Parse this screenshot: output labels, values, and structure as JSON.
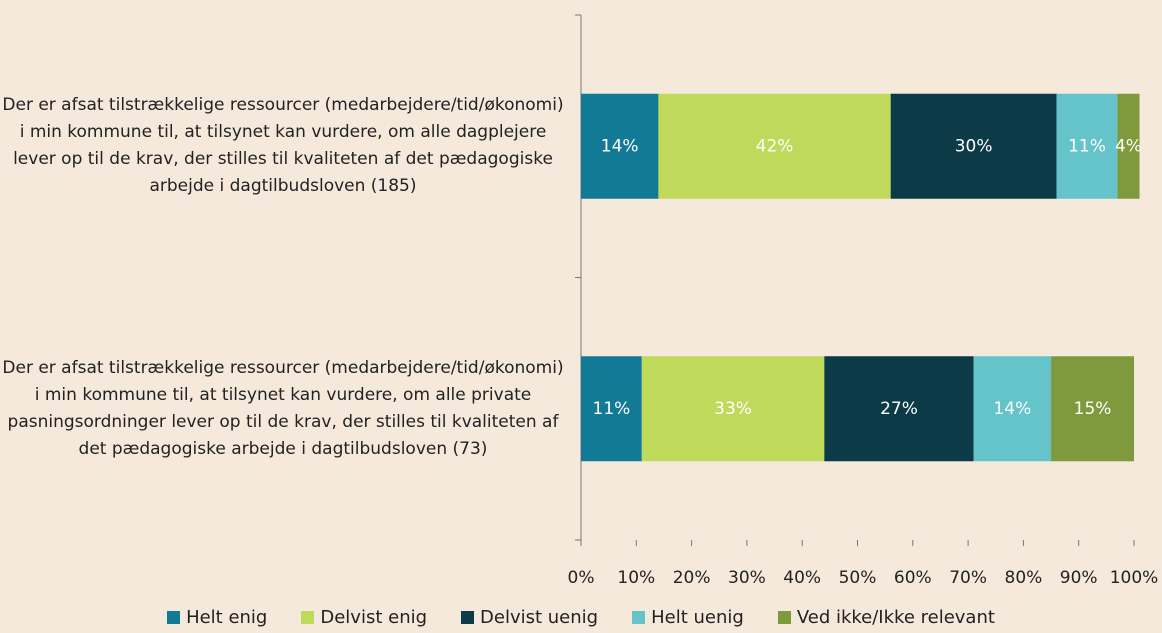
{
  "chart_data": {
    "type": "stacked_barh",
    "categories": [
      "Der er afsat tilstrækkelige ressourcer (medarbejdere/tid/økonomi) i min kommune til, at tilsynet kan vurdere, om alle dagplejere lever op til de krav, der stilles til kvaliteten af det pædagogiske arbejde i dagtilbudsloven (185)",
      "Der er afsat tilstrækkelige ressourcer (medarbejdere/tid/økonomi) i min kommune til, at tilsynet kan vurdere, om alle private pasningsordninger lever op til de krav, der stilles til kvaliteten af det pædagogiske arbejde i dagtilbudsloven (73)"
    ],
    "series": [
      {
        "name": "Helt enig",
        "color": "#137a96",
        "values": [
          14,
          11
        ],
        "value_labels": [
          "14%",
          "11%"
        ]
      },
      {
        "name": "Delvist enig",
        "color": "#bfd95a",
        "values": [
          42,
          33
        ],
        "value_labels": [
          "42%",
          "33%"
        ]
      },
      {
        "name": "Delvist uenig",
        "color": "#0c3a47",
        "values": [
          30,
          27
        ],
        "value_labels": [
          "30%",
          "27%"
        ]
      },
      {
        "name": "Helt uenig",
        "color": "#64c4c9",
        "values": [
          11,
          14
        ],
        "value_labels": [
          "11%",
          "14%"
        ]
      },
      {
        "name": "Ved ikke/Ikke relevant",
        "color": "#7f9a3c",
        "values": [
          4,
          15
        ],
        "value_labels": [
          "4%",
          "15%"
        ]
      }
    ],
    "xlim": [
      0,
      100
    ],
    "xticks": [
      {
        "value": 0,
        "label": "0%"
      },
      {
        "value": 10,
        "label": "10%"
      },
      {
        "value": 20,
        "label": "20%"
      },
      {
        "value": 30,
        "label": "30%"
      },
      {
        "value": 40,
        "label": "40%"
      },
      {
        "value": 50,
        "label": "50%"
      },
      {
        "value": 60,
        "label": "60%"
      },
      {
        "value": 70,
        "label": "70%"
      },
      {
        "value": 80,
        "label": "80%"
      },
      {
        "value": 90,
        "label": "90%"
      },
      {
        "value": 100,
        "label": "100%"
      }
    ],
    "legend": "bottom"
  }
}
